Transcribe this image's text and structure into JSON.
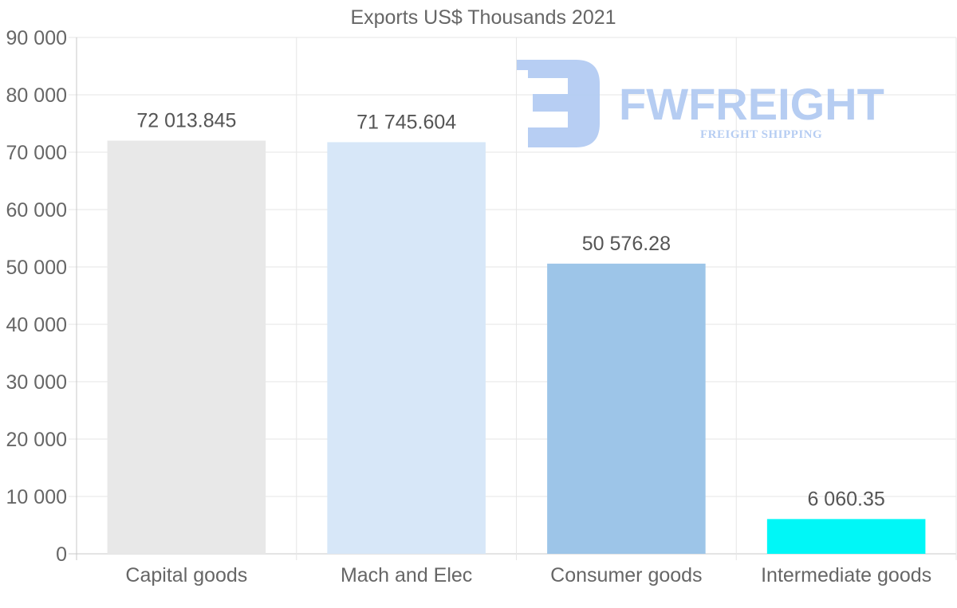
{
  "chart_data": {
    "type": "bar",
    "title": "Exports US$ Thousands 2021",
    "categories": [
      "Capital goods",
      "Mach and Elec",
      "Consumer goods",
      "Intermediate goods"
    ],
    "values": [
      72013.845,
      71745.604,
      50576.28,
      6060.35
    ],
    "value_labels": [
      "72 013.845",
      "71 745.604",
      "50 576.28",
      "6 060.35"
    ],
    "bar_colors": [
      "#e8e8e8",
      "#d7e7f8",
      "#9dc5e8",
      "#00f7f7"
    ],
    "ylim": [
      0,
      90000
    ],
    "yticks": [
      0,
      10000,
      20000,
      30000,
      40000,
      50000,
      60000,
      70000,
      80000,
      90000
    ],
    "ytick_labels": [
      "0",
      "10 000",
      "20 000",
      "30 000",
      "40 000",
      "50 000",
      "60 000",
      "70 000",
      "80 000",
      "90 000"
    ],
    "xlabel": "",
    "ylabel": "",
    "grid": true
  },
  "watermark": {
    "brand": "FWFREIGHT",
    "tagline": "FREIGHT SHIPPING",
    "color": "#b3cbf2"
  }
}
